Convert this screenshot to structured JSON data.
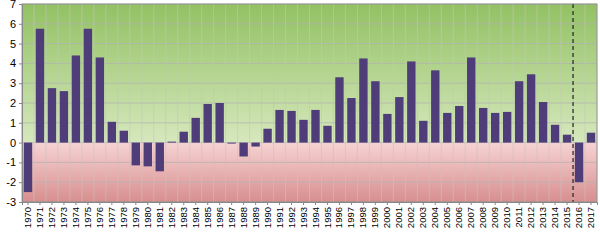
{
  "chart_data": {
    "type": "bar",
    "categories": [
      "1970",
      "1971",
      "1972",
      "1973",
      "1974",
      "1975",
      "1976",
      "1977",
      "1978",
      "1979",
      "1980",
      "1981",
      "1982",
      "1983",
      "1984",
      "1985",
      "1986",
      "1987",
      "1988",
      "1989",
      "1990",
      "1991",
      "1992",
      "1993",
      "1994",
      "1995",
      "1996",
      "1997",
      "1998",
      "1999",
      "2000",
      "2001",
      "2002",
      "2003",
      "2004",
      "2005",
      "2006",
      "2007",
      "2008",
      "2009",
      "2010",
      "2011",
      "2012",
      "2013",
      "2014",
      "2015",
      "2016",
      "2017"
    ],
    "values": [
      -2.5,
      5.75,
      2.75,
      2.6,
      4.4,
      5.75,
      4.3,
      1.05,
      0.6,
      -1.15,
      -1.2,
      -1.45,
      0.05,
      0.55,
      1.25,
      1.95,
      2.0,
      -0.05,
      -0.7,
      -0.2,
      0.7,
      1.65,
      1.6,
      1.15,
      1.65,
      0.85,
      3.3,
      2.25,
      4.25,
      3.1,
      1.45,
      2.3,
      4.1,
      1.1,
      3.65,
      1.5,
      1.85,
      4.3,
      1.75,
      1.5,
      1.55,
      3.1,
      3.45,
      2.05,
      0.9,
      0.4,
      -2.0,
      0.5
    ],
    "color": "#4e3d78",
    "ylim": [
      -3,
      7
    ],
    "yticks": [
      -3,
      -2,
      -1,
      0,
      1,
      2,
      3,
      4,
      5,
      6,
      7
    ],
    "grid": true
  }
}
